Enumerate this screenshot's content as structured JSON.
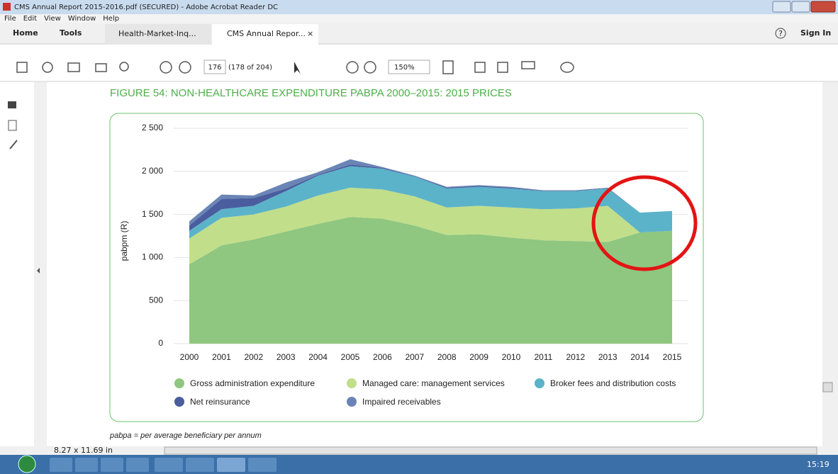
{
  "window": {
    "title": "CMS Annual Report 2015-2016.pdf (SECURED) - Adobe Acrobat Reader DC",
    "menu": [
      "File",
      "Edit",
      "View",
      "Window",
      "Help"
    ]
  },
  "tabs": {
    "home": "Home",
    "tools": "Tools",
    "items": [
      "Health-Market-Inq...",
      "CMS Annual Repor..."
    ],
    "close": "×",
    "help": "?",
    "sign_in": "Sign In"
  },
  "toolbar": {
    "page": "176",
    "page_count": "(178 of 204)",
    "zoom": "150%"
  },
  "status": {
    "page_size": "8.27 x 11.69 in"
  },
  "taskbar": {
    "clock": "15:19"
  },
  "chart_data": {
    "type": "stacked-area",
    "title": "FIGURE 54: NON-HEALTHCARE EXPENDITURE PABPA 2000–2015: 2015 PRICES",
    "y_label": "pabpm (R)",
    "x": [
      2000,
      2001,
      2002,
      2003,
      2004,
      2005,
      2006,
      2007,
      2008,
      2009,
      2010,
      2011,
      2012,
      2013,
      2014,
      2015
    ],
    "xlim": [
      2000,
      2015
    ],
    "ylim": [
      0,
      2500
    ],
    "yticks": [
      0,
      500,
      {
        "value": 1000,
        "label": "1 000"
      },
      {
        "value": 1500,
        "label": "1 500"
      },
      {
        "value": 2000,
        "label": "2 000"
      },
      {
        "value": 2500,
        "label": "2 500"
      }
    ],
    "grid": true,
    "legend": "bottom",
    "series": [
      {
        "name": "Gross administration expenditure",
        "color": "#8fc680",
        "values": [
          920,
          1140,
          1210,
          1300,
          1390,
          1470,
          1450,
          1370,
          1260,
          1270,
          1230,
          1200,
          1190,
          1180,
          1290,
          1310
        ]
      },
      {
        "name": "Managed care: management services",
        "color": "#c1de8a",
        "values": [
          300,
          320,
          290,
          290,
          330,
          340,
          340,
          340,
          320,
          330,
          350,
          360,
          380,
          420,
          0,
          0
        ]
      },
      {
        "name": "Broker fees and distribution costs",
        "color": "#5bb3c9",
        "values": [
          90,
          100,
          100,
          180,
          230,
          250,
          240,
          230,
          220,
          220,
          220,
          210,
          200,
          200,
          230,
          230
        ]
      },
      {
        "name": "Net reinsurance",
        "color": "#4a5d9e",
        "values": [
          60,
          120,
          90,
          30,
          10,
          20,
          10,
          5,
          10,
          10,
          10,
          5,
          5,
          5,
          0,
          0
        ]
      },
      {
        "name": "Impaired receivables",
        "color": "#6a85b5",
        "values": [
          50,
          50,
          30,
          70,
          30,
          60,
          10,
          5,
          10,
          10,
          10,
          5,
          5,
          5,
          0,
          0
        ]
      }
    ]
  },
  "footnote": "pabpa = per average beneficiary per annum"
}
